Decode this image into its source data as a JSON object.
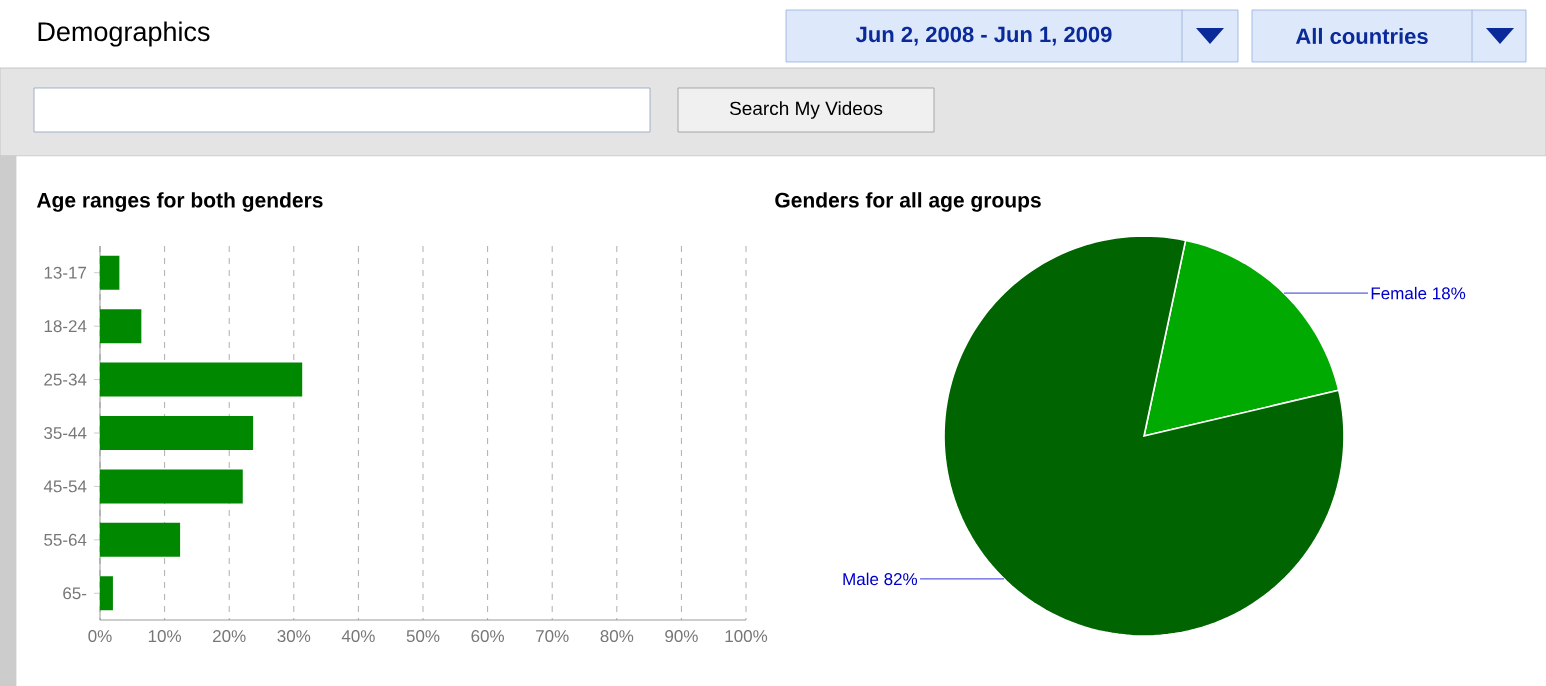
{
  "chart_data": [
    {
      "type": "bar",
      "orientation": "horizontal",
      "title": "Age ranges for both genders",
      "categories": [
        "13-17",
        "18-24",
        "25-34",
        "35-44",
        "45-54",
        "55-64",
        "65-"
      ],
      "values": [
        3.0,
        6.4,
        31.3,
        23.7,
        22.1,
        12.4,
        2.0
      ],
      "color": "#008800",
      "xlim": [
        0,
        100
      ],
      "xticks": [
        {
          "value": 0,
          "label": "0%"
        },
        {
          "value": 10,
          "label": "10%"
        },
        {
          "value": 20,
          "label": "20%"
        },
        {
          "value": 30,
          "label": "30%"
        },
        {
          "value": 40,
          "label": "40%"
        },
        {
          "value": 50,
          "label": "50%"
        },
        {
          "value": 60,
          "label": "60%"
        },
        {
          "value": 70,
          "label": "70%"
        },
        {
          "value": 80,
          "label": "80%"
        },
        {
          "value": 90,
          "label": "90%"
        },
        {
          "value": 100,
          "label": "100%"
        }
      ],
      "grid": "x",
      "annotations": [
        "Demographics",
        "Jun 2, 2008 - Jun 1, 2009",
        "All countries",
        "Search My Videos"
      ]
    },
    {
      "type": "pie",
      "title": "Genders for all age groups",
      "categories": [
        "Female",
        "Male"
      ],
      "values": [
        18,
        82
      ],
      "value_labels": [
        "18%",
        "82%"
      ],
      "colors": [
        "#00aa00",
        "#006400"
      ]
    }
  ]
}
